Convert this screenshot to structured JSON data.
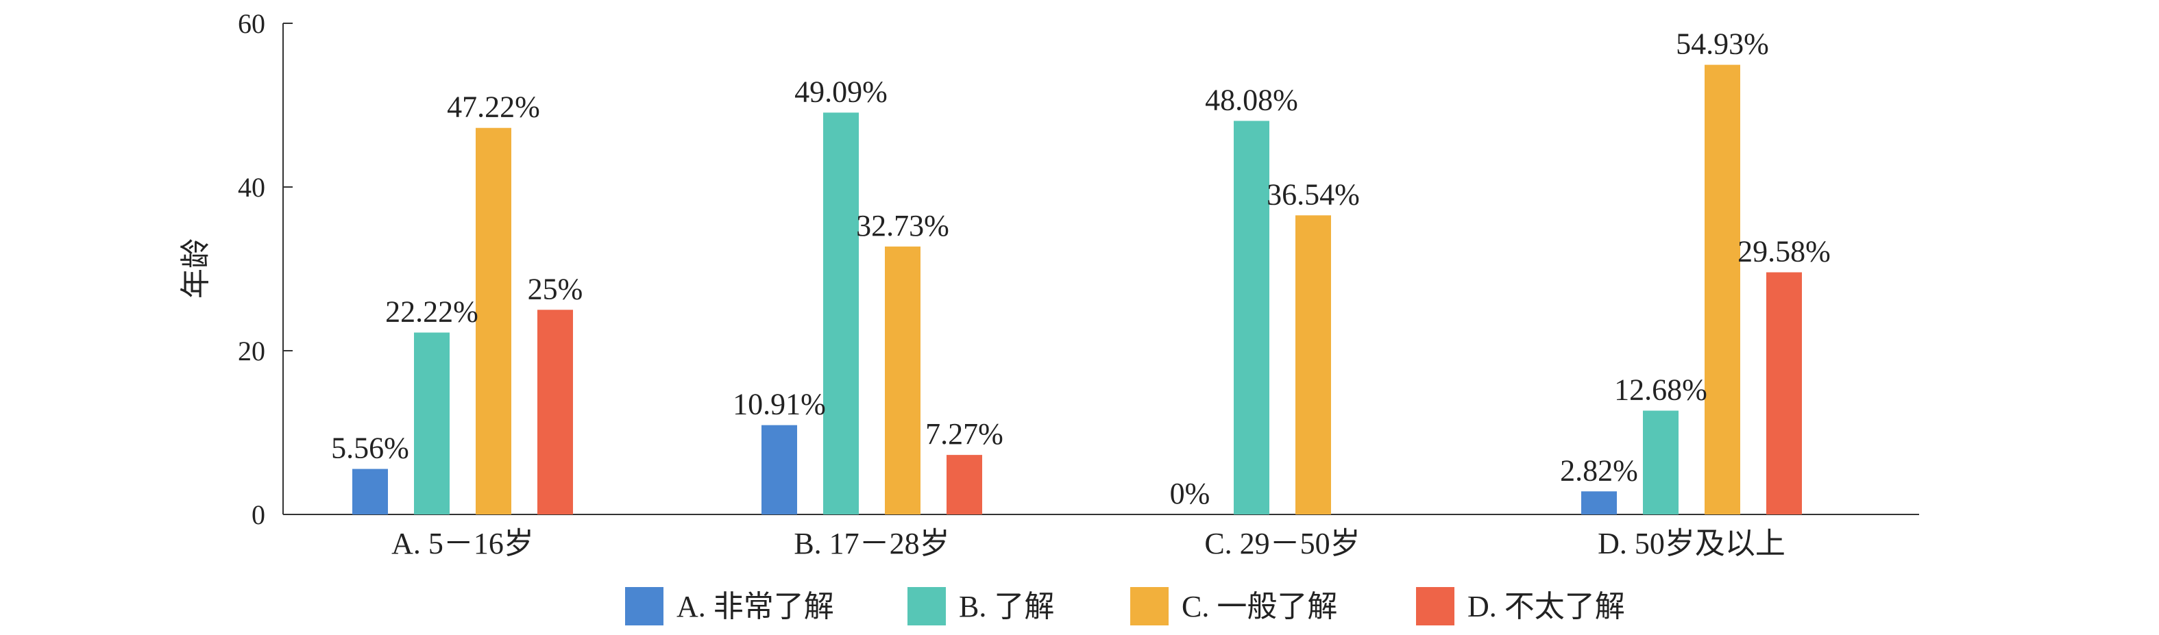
{
  "chart_data": {
    "type": "bar",
    "ylabel": "年龄",
    "ylim": [
      0,
      60
    ],
    "yticks": [
      0,
      20,
      40,
      60
    ],
    "categories": [
      "A. 5－16岁",
      "B. 17－28岁",
      "C. 29－50岁",
      "D. 50岁及以上"
    ],
    "grid": false,
    "legend_position": "bottom",
    "series": [
      {
        "name": "A. 非常了解",
        "color": "#4A86D1",
        "values": [
          5.56,
          10.91,
          0,
          2.82
        ],
        "labels": [
          "5.56%",
          "10.91%",
          "0%",
          "2.82%"
        ]
      },
      {
        "name": "B. 了解",
        "color": "#57C6B6",
        "values": [
          22.22,
          49.09,
          48.08,
          12.68
        ],
        "labels": [
          "22.22%",
          "49.09%",
          "48.08%",
          "12.68%"
        ]
      },
      {
        "name": "C. 一般了解",
        "color": "#F2B03C",
        "values": [
          47.22,
          32.73,
          36.54,
          54.93
        ],
        "labels": [
          "47.22%",
          "32.73%",
          "36.54%",
          "54.93%"
        ]
      },
      {
        "name": "D. 不太了解",
        "color": "#EE6448",
        "values": [
          25,
          7.27,
          null,
          29.58
        ],
        "labels": [
          "25%",
          "7.27%",
          "",
          "29.58%"
        ]
      }
    ]
  }
}
